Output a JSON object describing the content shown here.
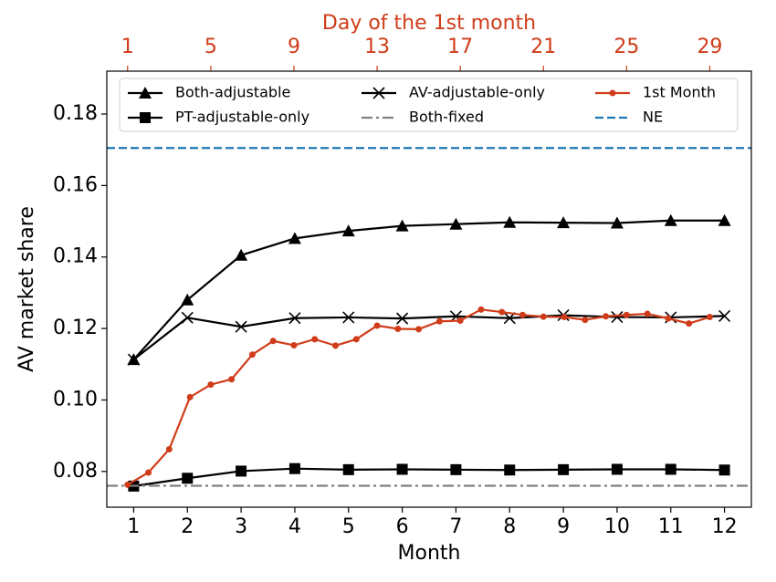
{
  "chart_data": {
    "type": "line",
    "xlabel": "Month",
    "ylabel": "AV market share",
    "x2label": "Day of the 1st month",
    "x": [
      1,
      2,
      3,
      4,
      5,
      6,
      7,
      8,
      9,
      10,
      11,
      12
    ],
    "xlim": [
      0.5,
      12.5
    ],
    "xticks": [
      1,
      2,
      3,
      4,
      5,
      6,
      7,
      8,
      9,
      10,
      11,
      12
    ],
    "x2lim": [
      0,
      31
    ],
    "x2ticks": [
      1,
      5,
      9,
      13,
      17,
      21,
      25,
      29
    ],
    "ylim": [
      0.07,
      0.192
    ],
    "yticks": [
      {
        "value": 0.08,
        "label": "0.08"
      },
      {
        "value": 0.1,
        "label": "0.10"
      },
      {
        "value": 0.12,
        "label": "0.12"
      },
      {
        "value": 0.14,
        "label": "0.14"
      },
      {
        "value": 0.16,
        "label": "0.16"
      },
      {
        "value": 0.18,
        "label": "0.18"
      }
    ],
    "series": [
      {
        "name": "Both-adjustable",
        "color": "#000000",
        "marker": "triangle",
        "values": [
          0.1113,
          0.128,
          0.1405,
          0.1452,
          0.1473,
          0.1487,
          0.1492,
          0.1497,
          0.1496,
          0.1495,
          0.1502,
          0.1502
        ]
      },
      {
        "name": "PT-adjustable-only",
        "color": "#000000",
        "marker": "square",
        "values": [
          0.0759,
          0.0781,
          0.0801,
          0.0808,
          0.0805,
          0.0806,
          0.0805,
          0.0804,
          0.0805,
          0.0806,
          0.0806,
          0.0804
        ]
      },
      {
        "name": "AV-adjustable-only",
        "color": "#000000",
        "marker": "x",
        "values": [
          0.1113,
          0.123,
          0.1205,
          0.1229,
          0.1231,
          0.1228,
          0.1234,
          0.1229,
          0.1237,
          0.1232,
          0.1231,
          0.1235
        ]
      },
      {
        "name": "Both-fixed",
        "color": "#808080",
        "dash": "dashdot",
        "hline": 0.076
      },
      {
        "name": "1st Month",
        "color": "#d03c1a",
        "marker": "dot",
        "axis": "x2",
        "x": [
          1,
          2,
          3,
          4,
          5,
          6,
          7,
          8,
          9,
          10,
          11,
          12,
          13,
          14,
          15,
          16,
          17,
          18,
          19,
          20,
          21,
          22,
          23,
          24,
          25,
          26,
          27,
          28,
          29
        ],
        "values": [
          0.0763,
          0.0797,
          0.0862,
          0.1008,
          0.1043,
          0.1058,
          0.1127,
          0.1165,
          0.1153,
          0.117,
          0.1152,
          0.117,
          0.1208,
          0.1199,
          0.1198,
          0.122,
          0.1222,
          0.1253,
          0.1246,
          0.1238,
          0.1233,
          0.1232,
          0.1224,
          0.1234,
          0.1238,
          0.1241,
          0.1228,
          0.1214,
          0.1232
        ]
      },
      {
        "name": "NE",
        "color": "#1f77b4",
        "dash": "dashed",
        "hline": 0.1705
      }
    ]
  }
}
